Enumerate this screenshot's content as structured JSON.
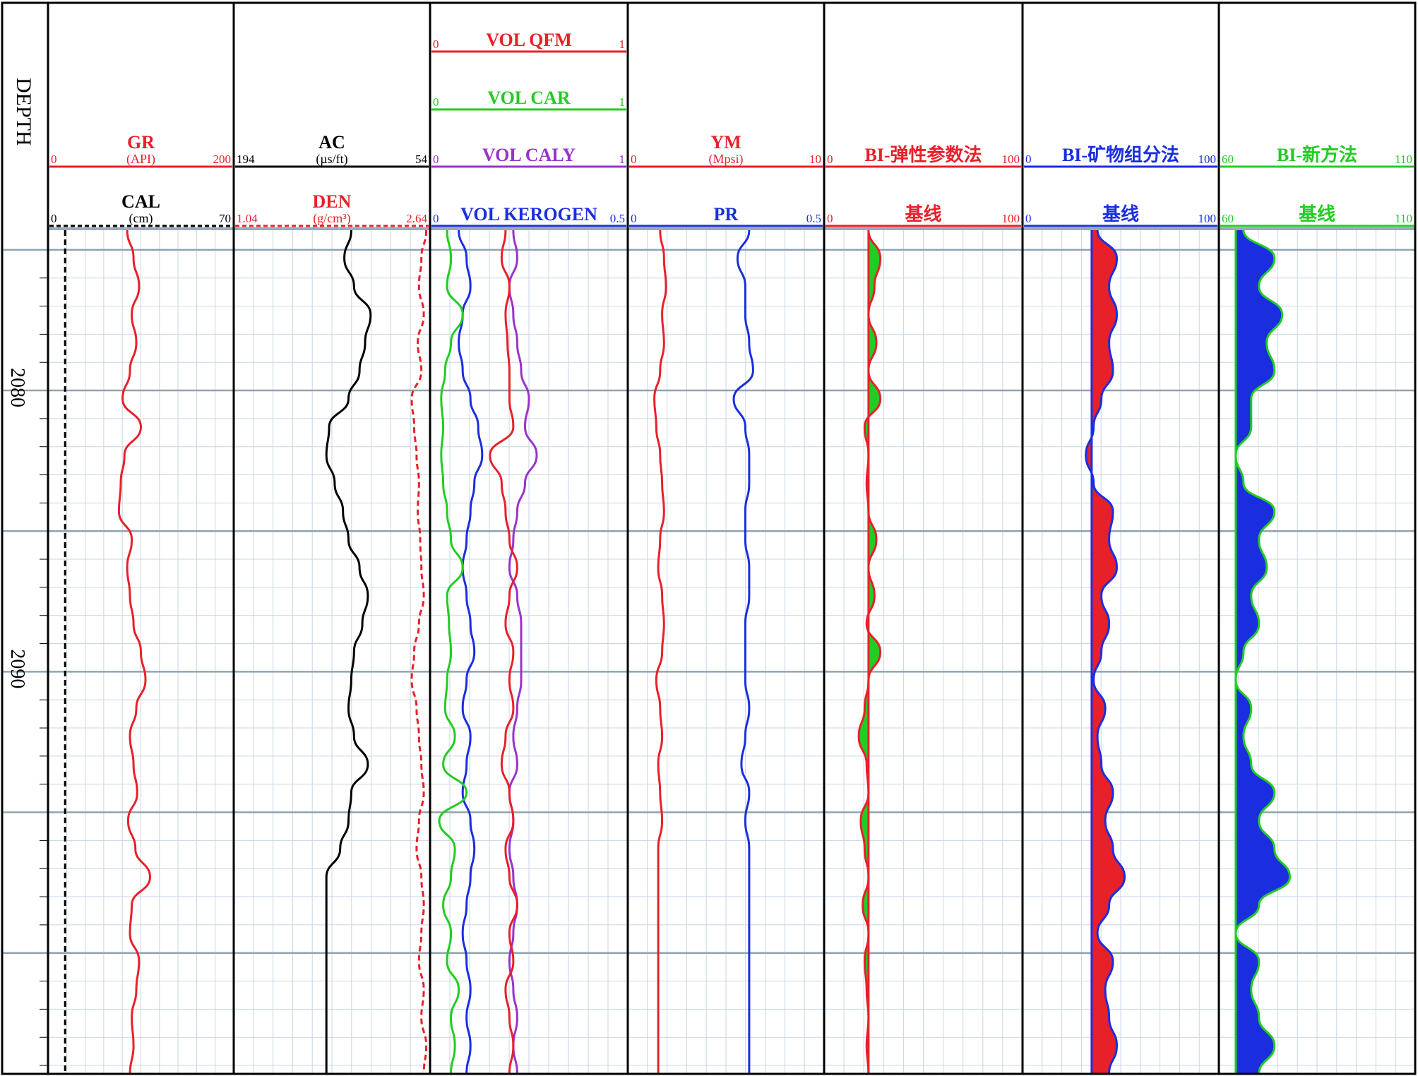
{
  "depth_track": {
    "title": "DEPTH",
    "labels": [
      {
        "depth": 2080,
        "text": "2080"
      },
      {
        "depth": 2090,
        "text": "2090"
      }
    ]
  },
  "tracks": [
    {
      "id": "gr-cal",
      "curves": [
        {
          "name": "GR",
          "unit": "(API)",
          "min": "0",
          "max": "200",
          "color": "#e8202a",
          "dashed": false
        },
        {
          "name": "CAL",
          "unit": "(cm)",
          "min": "0",
          "max": "70",
          "color": "#000000",
          "dashed": true
        }
      ]
    },
    {
      "id": "ac-den",
      "curves": [
        {
          "name": "AC",
          "unit": "(µs/ft)",
          "min": "194",
          "max": "54",
          "color": "#000000",
          "dashed": false
        },
        {
          "name": "DEN",
          "unit": "(g/cm³)",
          "min": "1.04",
          "max": "2.64",
          "color": "#e8202a",
          "dashed": true
        }
      ]
    },
    {
      "id": "mineral",
      "curves": [
        {
          "name": "VOL  QFM",
          "unit": "",
          "min": "0",
          "max": "1",
          "color": "#e8202a",
          "dashed": false
        },
        {
          "name": "VOL  CAR",
          "unit": "",
          "min": "0",
          "max": "1",
          "color": "#22cc22",
          "dashed": false
        },
        {
          "name": "VOL  CALY",
          "unit": "",
          "min": "0",
          "max": "1",
          "color": "#9933cc",
          "dashed": false
        },
        {
          "name": "VOL  KEROGEN",
          "unit": "",
          "min": "0",
          "max": "0.5",
          "color": "#1a2ee0",
          "dashed": false
        }
      ]
    },
    {
      "id": "ym-pr",
      "curves": [
        {
          "name": "YM",
          "unit": "(Mpsi)",
          "min": "0",
          "max": "10",
          "color": "#e8202a",
          "dashed": false
        },
        {
          "name": "PR",
          "unit": "",
          "min": "0",
          "max": "0.5",
          "color": "#1a2ee0",
          "dashed": false
        }
      ]
    },
    {
      "id": "bi-elastic",
      "curves": [
        {
          "name": "BI-弹性参数法",
          "unit": "",
          "min": "0",
          "max": "100",
          "color": "#e8202a",
          "dashed": false
        },
        {
          "name": "基线",
          "unit": "",
          "min": "0",
          "max": "100",
          "color": "#e8202a",
          "dashed": false
        }
      ]
    },
    {
      "id": "bi-mineral",
      "curves": [
        {
          "name": "BI-矿物组分法",
          "unit": "",
          "min": "0",
          "max": "100",
          "color": "#1a2ee0",
          "dashed": false
        },
        {
          "name": "基线",
          "unit": "",
          "min": "0",
          "max": "100",
          "color": "#1a2ee0",
          "dashed": false
        }
      ]
    },
    {
      "id": "bi-new",
      "curves": [
        {
          "name": "BI-新方法",
          "unit": "",
          "min": "60",
          "max": "110",
          "color": "#22cc22",
          "dashed": false
        },
        {
          "name": "基线",
          "unit": "",
          "min": "60",
          "max": "110",
          "color": "#22cc22",
          "dashed": false
        }
      ]
    }
  ],
  "chart_data": {
    "type": "line",
    "depth_range": [
      2074.3,
      2104.3
    ],
    "depth_unit": "",
    "depth_labels": [
      2080,
      2090
    ],
    "samples": {
      "depth": [
        2074.3,
        2075.3,
        2076.3,
        2077.3,
        2078.3,
        2079.3,
        2080.3,
        2081.3,
        2082.3,
        2083.3,
        2084.3,
        2085.3,
        2086.3,
        2087.3,
        2088.3,
        2089.3,
        2090.3,
        2091.3,
        2092.3,
        2093.3,
        2094.3,
        2095.3,
        2096.3,
        2097.3,
        2098.3,
        2099.3,
        2100.3,
        2101.3,
        2102.3,
        2103.3,
        2104.3
      ],
      "GR": [
        85,
        92,
        98,
        90,
        95,
        88,
        80,
        100,
        82,
        78,
        76,
        90,
        85,
        88,
        92,
        100,
        105,
        95,
        88,
        92,
        96,
        86,
        94,
        110,
        90,
        88,
        98,
        95,
        90,
        92,
        88
      ],
      "CAL": [
        6,
        6,
        6,
        6,
        6,
        6,
        6,
        6,
        6,
        6,
        6,
        6,
        6,
        6,
        6,
        6,
        6,
        6,
        6,
        6,
        6,
        6,
        6,
        6,
        6,
        6,
        6,
        6,
        6,
        6,
        6
      ],
      "AC": [
        110,
        115,
        108,
        96,
        100,
        104,
        112,
        126,
        128,
        122,
        116,
        112,
        104,
        98,
        102,
        108,
        110,
        112,
        108,
        98,
        110,
        112,
        118,
        128,
        128,
        128,
        128,
        128,
        128,
        128,
        128
      ],
      "DEN": [
        2.62,
        2.58,
        2.56,
        2.6,
        2.55,
        2.58,
        2.5,
        2.52,
        2.54,
        2.56,
        2.55,
        2.57,
        2.58,
        2.6,
        2.56,
        2.52,
        2.5,
        2.54,
        2.56,
        2.58,
        2.6,
        2.56,
        2.54,
        2.58,
        2.6,
        2.58,
        2.56,
        2.6,
        2.58,
        2.62,
        2.6
      ],
      "VOL_QFM": [
        0.38,
        0.36,
        0.4,
        0.38,
        0.39,
        0.4,
        0.4,
        0.42,
        0.3,
        0.36,
        0.38,
        0.4,
        0.44,
        0.4,
        0.38,
        0.42,
        0.4,
        0.42,
        0.38,
        0.36,
        0.4,
        0.42,
        0.38,
        0.4,
        0.44,
        0.4,
        0.42,
        0.38,
        0.4,
        0.42,
        0.4
      ],
      "VOL_CAR": [
        0.08,
        0.1,
        0.08,
        0.16,
        0.1,
        0.07,
        0.05,
        0.06,
        0.05,
        0.06,
        0.08,
        0.1,
        0.16,
        0.08,
        0.09,
        0.1,
        0.08,
        0.07,
        0.12,
        0.06,
        0.18,
        0.04,
        0.12,
        0.1,
        0.06,
        0.1,
        0.08,
        0.14,
        0.1,
        0.12,
        0.1
      ],
      "VOL_CALY": [
        0.42,
        0.44,
        0.4,
        0.42,
        0.44,
        0.46,
        0.5,
        0.48,
        0.54,
        0.48,
        0.44,
        0.42,
        0.4,
        0.44,
        0.46,
        0.46,
        0.46,
        0.44,
        0.42,
        0.44,
        0.4,
        0.42,
        0.4,
        0.42,
        0.44,
        0.42,
        0.4,
        0.42,
        0.44,
        0.42,
        0.44
      ],
      "VOL_KEROGEN": [
        0.07,
        0.09,
        0.1,
        0.08,
        0.07,
        0.08,
        0.1,
        0.12,
        0.13,
        0.11,
        0.1,
        0.09,
        0.08,
        0.09,
        0.1,
        0.11,
        0.09,
        0.08,
        0.1,
        0.09,
        0.08,
        0.1,
        0.11,
        0.1,
        0.09,
        0.08,
        0.09,
        0.1,
        0.09,
        0.1,
        0.09
      ],
      "YM": [
        1.6,
        1.8,
        1.9,
        1.7,
        1.8,
        1.6,
        1.3,
        1.4,
        1.6,
        1.7,
        1.8,
        1.6,
        1.5,
        1.7,
        1.8,
        1.7,
        1.4,
        1.6,
        1.7,
        1.5,
        1.6,
        1.7,
        1.5,
        1.5,
        1.5,
        1.5,
        1.5,
        1.5,
        1.5,
        1.5,
        1.5
      ],
      "PR": [
        0.31,
        0.28,
        0.3,
        0.3,
        0.31,
        0.32,
        0.27,
        0.3,
        0.31,
        0.31,
        0.3,
        0.3,
        0.31,
        0.31,
        0.3,
        0.3,
        0.3,
        0.31,
        0.3,
        0.29,
        0.31,
        0.3,
        0.31,
        0.31,
        0.31,
        0.31,
        0.31,
        0.31,
        0.31,
        0.31,
        0.31
      ],
      "BI_elastic": [
        22,
        28,
        25,
        22,
        26,
        22,
        28,
        20,
        22,
        21,
        22,
        26,
        22,
        25,
        21,
        28,
        22,
        20,
        17,
        21,
        22,
        18,
        20,
        22,
        19,
        22,
        20,
        21,
        22,
        21,
        22
      ],
      "BI_elastic_base": [
        22,
        22,
        22,
        22,
        22,
        22,
        22,
        22,
        22,
        22,
        22,
        22,
        22,
        22,
        22,
        22,
        22,
        22,
        22,
        22,
        22,
        22,
        22,
        22,
        22,
        22,
        22,
        22,
        22,
        22,
        22
      ],
      "BI_mineral": [
        38,
        48,
        44,
        48,
        44,
        46,
        40,
        36,
        32,
        36,
        46,
        44,
        48,
        40,
        44,
        40,
        36,
        42,
        38,
        40,
        46,
        42,
        46,
        52,
        44,
        38,
        46,
        42,
        44,
        48,
        44
      ],
      "BI_mineral_base": [
        35,
        35,
        35,
        35,
        35,
        35,
        35,
        35,
        35,
        35,
        35,
        35,
        35,
        35,
        35,
        35,
        35,
        35,
        35,
        35,
        35,
        35,
        35,
        35,
        35,
        35,
        35,
        35,
        35,
        35,
        35
      ],
      "BI_new": [
        66,
        74,
        70,
        76,
        72,
        74,
        68,
        68,
        64,
        66,
        74,
        70,
        72,
        68,
        70,
        66,
        64,
        68,
        66,
        68,
        74,
        70,
        74,
        78,
        70,
        64,
        70,
        68,
        70,
        74,
        70
      ],
      "BI_new_base": [
        64,
        64,
        64,
        64,
        64,
        64,
        64,
        64,
        64,
        64,
        64,
        64,
        64,
        64,
        64,
        64,
        64,
        64,
        64,
        64,
        64,
        64,
        64,
        64,
        64,
        64,
        64,
        64,
        64,
        64,
        64
      ]
    }
  }
}
